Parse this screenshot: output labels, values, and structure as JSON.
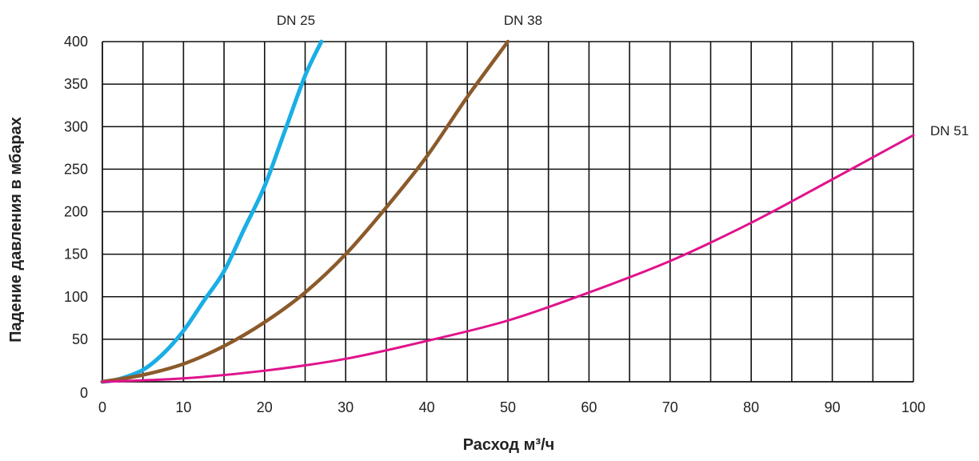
{
  "chart_data": {
    "type": "line",
    "title": "",
    "xlabel": "Расход м³/ч",
    "ylabel": "Падение давления в мбарах",
    "xlim": [
      0,
      100
    ],
    "ylim": [
      0,
      400
    ],
    "x_ticks": [
      0,
      10,
      20,
      30,
      40,
      50,
      60,
      70,
      80,
      90,
      100
    ],
    "y_ticks": [
      0,
      50,
      100,
      150,
      200,
      250,
      300,
      350,
      400
    ],
    "grid": true,
    "series": [
      {
        "name": "DN 25",
        "color": "#1aaee5",
        "x": [
          0,
          2,
          5,
          7.5,
          10,
          12.5,
          15,
          17.5,
          20,
          22.5,
          25,
          27
        ],
        "y": [
          0,
          3,
          14,
          33,
          60,
          95,
          130,
          180,
          230,
          295,
          360,
          400
        ]
      },
      {
        "name": "DN 38",
        "color": "#8b5a2b",
        "x": [
          0,
          5,
          10,
          15,
          20,
          25,
          30,
          35,
          40,
          45,
          50
        ],
        "y": [
          0,
          8,
          21,
          42,
          70,
          105,
          150,
          205,
          265,
          335,
          400
        ]
      },
      {
        "name": "DN 51",
        "color": "#e0138c",
        "x": [
          0,
          10,
          20,
          30,
          40,
          50,
          60,
          70,
          80,
          90,
          100
        ],
        "y": [
          0,
          4,
          13,
          27,
          48,
          72,
          105,
          142,
          187,
          238,
          290
        ]
      }
    ]
  }
}
